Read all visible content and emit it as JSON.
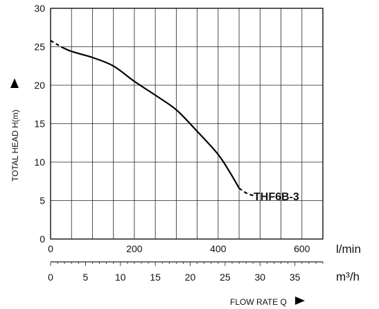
{
  "chart_data": {
    "type": "line",
    "ylabel": "TOTAL HEAD H(m)",
    "xlabel": "FLOW RATE Q",
    "x_unit_primary": "l/min",
    "x_unit_secondary": "m³/h",
    "ylim": [
      0,
      30
    ],
    "y_ticks": [
      0,
      5,
      10,
      15,
      20,
      25,
      30
    ],
    "xlim_lmin": [
      0,
      650
    ],
    "x_ticks_lmin": [
      0,
      200,
      400,
      600
    ],
    "xlim_m3h": [
      0,
      39
    ],
    "x_ticks_m3h": [
      0,
      5,
      10,
      15,
      20,
      25,
      30,
      35
    ],
    "grid": true,
    "series": [
      {
        "name": "THF6B-3",
        "x": [
          0,
          25,
          50,
          100,
          150,
          200,
          250,
          300,
          350,
          400,
          430,
          450,
          470,
          490
        ],
        "y": [
          25.8,
          25.0,
          24.4,
          23.6,
          22.5,
          20.5,
          18.7,
          16.8,
          14.0,
          11.0,
          8.5,
          6.6,
          5.9,
          5.6
        ],
        "dashed_segments": [
          [
            0,
            25
          ],
          [
            460,
            490
          ]
        ]
      }
    ]
  }
}
